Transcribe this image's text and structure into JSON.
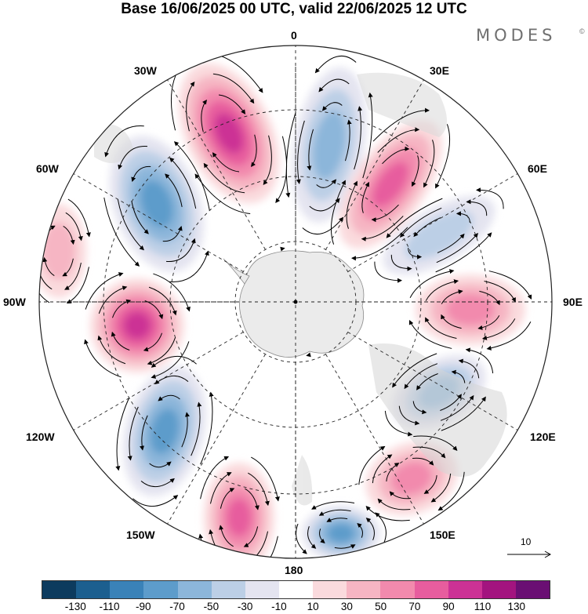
{
  "title": "Base 16/06/2025 00 UTC, valid 22/06/2025 12 UTC",
  "brand": "MODES",
  "brand_mark": "©",
  "longitude_labels": {
    "top": "0",
    "bottom": "180",
    "left": "90W",
    "right": "90E",
    "w30": "30W",
    "w60": "60W",
    "w120": "120W",
    "w150": "150W",
    "e30": "30E",
    "e60": "60E",
    "e120": "120E",
    "e150": "150E"
  },
  "reference_vector": {
    "label": "10"
  },
  "colorbar": {
    "colors": [
      "#0d3b5e",
      "#1c5f8f",
      "#3a82b8",
      "#5d9ccb",
      "#8cb6da",
      "#bccfe6",
      "#e4e4f0",
      "#ffffff",
      "#fadadd",
      "#f6b5c3",
      "#f28aad",
      "#e75d9e",
      "#cc3295",
      "#a3147f",
      "#6a0f73"
    ],
    "tick_labels": [
      "-130",
      "-110",
      "-90",
      "-70",
      "-50",
      "-30",
      "-10",
      "10",
      "30",
      "50",
      "70",
      "90",
      "110",
      "130"
    ]
  },
  "map": {
    "projection": "south polar stereographic",
    "field": "anomaly (shaded) with wind vectors",
    "anomaly_centers": [
      {
        "lon_label": "30W-0",
        "sign": "positive",
        "peak": 110
      },
      {
        "lon_label": "0-15E",
        "sign": "negative",
        "peak": -70
      },
      {
        "lon_label": "30E-45E",
        "sign": "positive",
        "peak": 90
      },
      {
        "lon_label": "60E-75E",
        "sign": "negative",
        "peak": -50
      },
      {
        "lon_label": "90E",
        "sign": "positive",
        "peak": 70
      },
      {
        "lon_label": "120E",
        "sign": "negative",
        "peak": -70
      },
      {
        "lon_label": "150E",
        "sign": "positive",
        "peak": 70
      },
      {
        "lon_label": "165E",
        "sign": "negative",
        "peak": -90
      },
      {
        "lon_label": "165W",
        "sign": "positive",
        "peak": 90
      },
      {
        "lon_label": "135W",
        "sign": "negative",
        "peak": -90
      },
      {
        "lon_label": "90W",
        "sign": "positive",
        "peak": 110
      },
      {
        "lon_label": "60W",
        "sign": "negative",
        "peak": -90
      },
      {
        "lon_label": "70W",
        "sign": "positive",
        "peak": 50
      }
    ]
  }
}
